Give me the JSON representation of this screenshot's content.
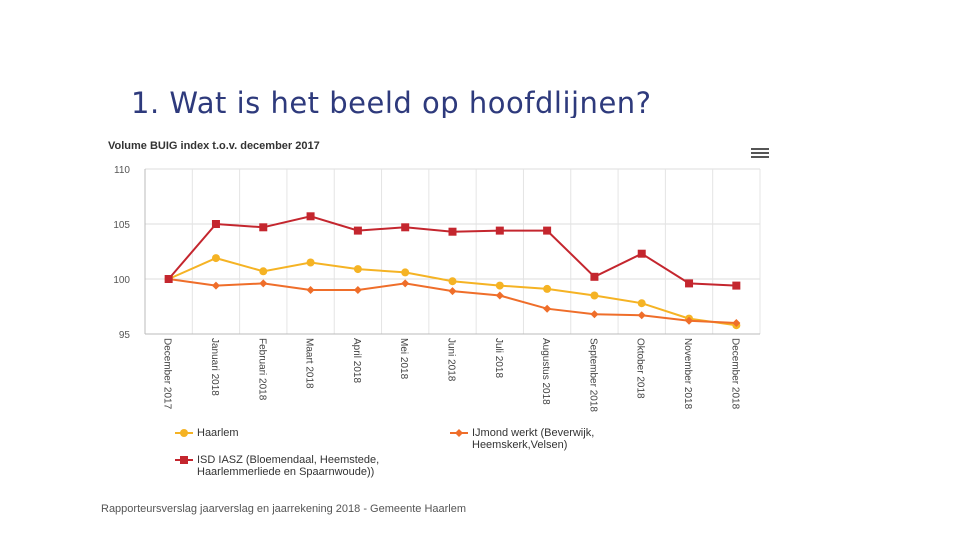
{
  "slide": {
    "title": "1. Wat is het beeld op hoofdlijnen?",
    "footer": "Rapporteursverslag jaarverslag en jaarrekening 2018 - Gemeente Haarlem"
  },
  "chart_data": {
    "type": "line",
    "title": "Volume BUIG index t.o.v. december 2017",
    "xlabel": "",
    "ylabel": "",
    "ylim": [
      95,
      110
    ],
    "yticks": [
      "95",
      "100",
      "105",
      "110"
    ],
    "categories": [
      "December 2017",
      "Januari 2018",
      "Februari 2018",
      "Maart 2018",
      "April 2018",
      "Mei 2018",
      "Juni 2018",
      "Juli 2018",
      "Augustus 2018",
      "September 2018",
      "Oktober 2018",
      "November 2018",
      "December 2018"
    ],
    "series": [
      {
        "name": "Haarlem",
        "color": "#f5b324",
        "marker": "circle",
        "values": [
          100.0,
          101.9,
          100.7,
          101.5,
          100.9,
          100.6,
          99.8,
          99.4,
          99.1,
          98.5,
          97.8,
          96.4,
          95.8
        ]
      },
      {
        "name": "IJmond werkt (Beverwijk, Heemskerk,Velsen)",
        "color": "#ef6e2a",
        "marker": "diamond",
        "values": [
          100.0,
          99.4,
          99.6,
          99.0,
          99.0,
          99.6,
          98.9,
          98.5,
          97.3,
          96.8,
          96.7,
          96.2,
          96.0
        ]
      },
      {
        "name": "ISD IASZ (Bloemendaal, Heemstede, Haarlemmerliede en Spaarnwoude))",
        "color": "#c4262e",
        "marker": "square",
        "values": [
          100.0,
          105.0,
          104.7,
          105.7,
          104.4,
          104.7,
          104.3,
          104.4,
          104.4,
          100.2,
          102.3,
          99.6,
          99.4
        ]
      }
    ],
    "legend_position": "bottom"
  },
  "ui": {
    "menu_icon": "hamburger-menu-icon"
  }
}
